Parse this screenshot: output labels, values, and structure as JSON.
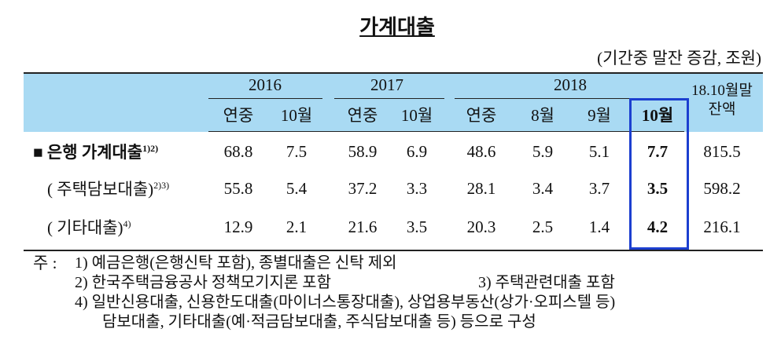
{
  "title": "가계대출",
  "unit": "(기간중 말잔 증감, 조원)",
  "header": {
    "years": [
      "2016",
      "2017",
      "2018"
    ],
    "columns": [
      "연중",
      "10월",
      "연중",
      "10월",
      "연중",
      "8월",
      "9월",
      "10월"
    ],
    "balance": [
      "18.10월말",
      "잔액"
    ]
  },
  "rows": [
    {
      "label": "■ 은행 가계대출",
      "note": "1)2)",
      "values": [
        "68.8",
        "7.5",
        "58.9",
        "6.9",
        "48.6",
        "5.9",
        "5.1",
        "7.7",
        "815.5"
      ]
    },
    {
      "label": "( 주택담보대출)",
      "note": "2)3)",
      "values": [
        "55.8",
        "5.4",
        "37.2",
        "3.3",
        "28.1",
        "3.4",
        "3.7",
        "3.5",
        "598.2"
      ]
    },
    {
      "label": "( 기타대출)",
      "note": "4)",
      "values": [
        "12.9",
        "2.1",
        "21.6",
        "3.5",
        "20.3",
        "2.5",
        "1.4",
        "4.2",
        "216.1"
      ]
    }
  ],
  "notes": {
    "prefix": "주 :",
    "lines": [
      "1) 예금은행(은행신탁 포함), 종별대출은 신탁 제외",
      "2) 한국주택금융공사 정책모기지론 포함",
      "3) 주택관련대출 포함",
      "4) 일반신용대출, 신용한도대출(마이너스통장대출), 상업용부동산(상가·오피스텔 등)",
      "담보대출, 기타대출(예·적금담보대출, 주식담보대출 등) 등으로 구성"
    ]
  }
}
